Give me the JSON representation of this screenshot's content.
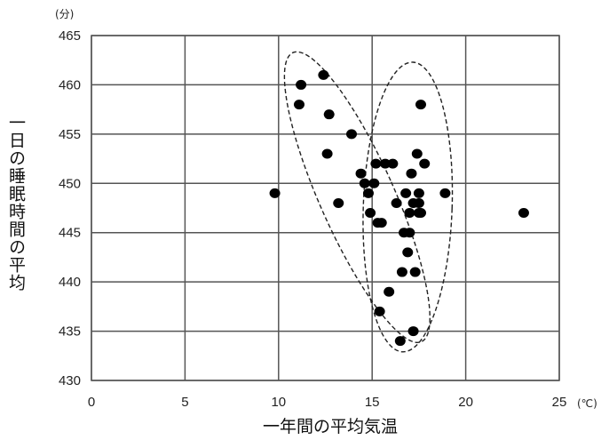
{
  "chart_data": {
    "type": "scatter",
    "title": "",
    "xlabel": "一年間の平均気温",
    "ylabel": "一日の睡眠時間の平均",
    "x_unit": "(℃)",
    "y_unit": "(分)",
    "xlim": [
      0,
      25
    ],
    "ylim": [
      430,
      465
    ],
    "xticks": [
      0,
      5,
      10,
      15,
      20,
      25
    ],
    "yticks": [
      430,
      435,
      440,
      445,
      450,
      455,
      460,
      465
    ],
    "grid": true,
    "legend": "none",
    "series": [
      {
        "x": [
          9.8,
          11.1,
          11.2,
          12.4,
          12.6,
          12.7,
          13.2,
          13.9,
          14.4,
          14.6,
          14.8,
          14.9,
          15.1,
          15.2,
          15.3,
          15.4,
          15.5,
          15.7,
          15.9,
          16.1,
          16.3,
          16.5,
          16.6,
          16.7,
          16.8,
          16.9,
          17.0,
          17.0,
          17.1,
          17.2,
          17.2,
          17.3,
          17.4,
          17.5,
          17.5,
          17.5,
          17.6,
          17.6,
          17.8,
          18.9,
          23.1
        ],
        "y": [
          449,
          458,
          460,
          461,
          453,
          457,
          448,
          455,
          451,
          450,
          449,
          447,
          450,
          452,
          446,
          437,
          446,
          452,
          439,
          452,
          448,
          434,
          441,
          445,
          449,
          443,
          445,
          447,
          451,
          448,
          435,
          441,
          453,
          447,
          449,
          448,
          458,
          447,
          452,
          449,
          447
        ]
      }
    ],
    "annotations": [
      "dashed ellipse around left cluster",
      "dashed ellipse around right cluster"
    ]
  }
}
